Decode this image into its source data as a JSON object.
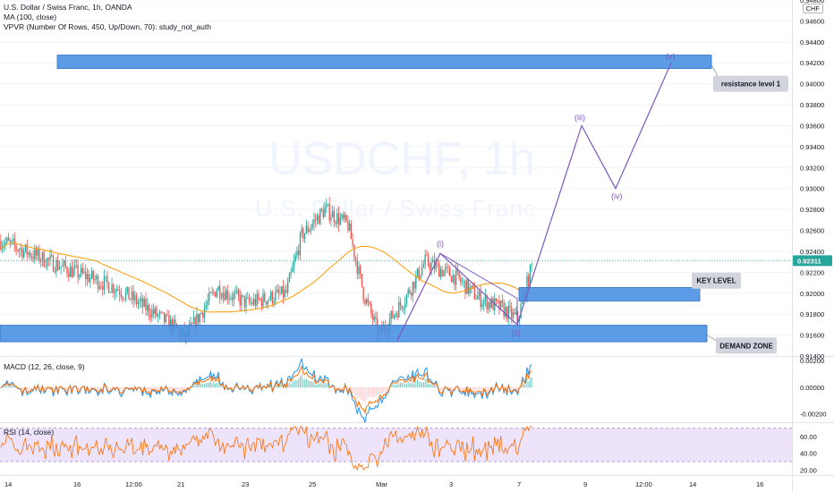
{
  "header": {
    "title": "U.S. Dollar / Swiss Franc, 1h, OANDA",
    "ma": "MA (100, close)",
    "vpvr": "VPVR (Number Of Rows, 450, Up/Down, 70): study_not_auth"
  },
  "currency": "CHF",
  "watermark": {
    "symbol": "USDCHF, 1h",
    "name": "U.S. Dollar / Swiss Franc"
  },
  "macd_label": "MACD (12, 26, close, 9)",
  "rsi_label": "RSI (14, close)",
  "colors": {
    "up": "#26a69a",
    "down": "#ef5350",
    "ma": "#ff9800",
    "zone": "#4a90e2",
    "wave": "#7e57c2",
    "macd": "#2196f3",
    "signal": "#ff6d00",
    "rsi": "#ff6d00",
    "rsi_band": "#ede4fb",
    "price_badge": "#26a69a"
  },
  "chart_data": [
    {
      "type": "candlestick",
      "panel": "price",
      "ylim": [
        0.914,
        0.948
      ],
      "y_ticks": [
        "0.94800",
        "0.94600",
        "0.94400",
        "0.94200",
        "0.94000",
        "0.93800",
        "0.93600",
        "0.93400",
        "0.93200",
        "0.93000",
        "0.92800",
        "0.92600",
        "0.92400",
        "0.92200",
        "0.92000",
        "0.91800",
        "0.91600",
        "0.91400"
      ],
      "x_ticks": [
        "14",
        "16",
        "12:00",
        "21",
        "23",
        "25",
        "Mar",
        "3",
        "7",
        "9",
        "12:00",
        "14",
        "16"
      ],
      "last_price": "0.92311",
      "candles_described": "approx 280 hourly candles from ~14 Feb to ~7 Mar, ranging ~0.9150 to ~0.9290",
      "key_points": [
        {
          "t": 0,
          "p": 0.925
        },
        {
          "t": 40,
          "p": 0.9225
        },
        {
          "t": 75,
          "p": 0.9205
        },
        {
          "t": 110,
          "p": 0.917
        },
        {
          "t": 120,
          "p": 0.9158
        },
        {
          "t": 140,
          "p": 0.9205
        },
        {
          "t": 160,
          "p": 0.919
        },
        {
          "t": 185,
          "p": 0.92
        },
        {
          "t": 195,
          "p": 0.9255
        },
        {
          "t": 210,
          "p": 0.928
        },
        {
          "t": 225,
          "p": 0.9265
        },
        {
          "t": 235,
          "p": 0.92
        },
        {
          "t": 245,
          "p": 0.916
        },
        {
          "t": 262,
          "p": 0.9195
        },
        {
          "t": 275,
          "p": 0.923
        },
        {
          "t": 295,
          "p": 0.9215
        },
        {
          "t": 310,
          "p": 0.9195
        },
        {
          "t": 325,
          "p": 0.9185
        },
        {
          "t": 335,
          "p": 0.9175
        },
        {
          "t": 345,
          "p": 0.9231
        }
      ],
      "zones": [
        {
          "name": "resistance",
          "from": 0.9418,
          "to": 0.9424
        },
        {
          "name": "key-level",
          "from": 0.9196,
          "to": 0.9202
        },
        {
          "name": "demand",
          "from": 0.9157,
          "to": 0.9166
        }
      ],
      "waves": [
        {
          "label": "(i)",
          "p": 0.9238
        },
        {
          "label": "(ii)",
          "p": 0.917
        },
        {
          "label": "(iii)",
          "p": 0.936
        },
        {
          "label": "(iv)",
          "p": 0.93
        },
        {
          "label": "(v)",
          "p": 0.942
        }
      ],
      "callouts": [
        "resistance level 1",
        "KEY LEVEL",
        "DEMAND ZONE"
      ]
    },
    {
      "type": "line",
      "panel": "macd",
      "y_ticks": [
        "0.00200",
        "0.00000",
        "-0.00200"
      ],
      "ylim": [
        -0.0025,
        0.0022
      ]
    },
    {
      "type": "line",
      "panel": "rsi",
      "y_ticks": [
        "60.00",
        "40.00",
        "20.00"
      ],
      "ylim": [
        15,
        75
      ],
      "band": [
        30,
        70
      ]
    }
  ]
}
